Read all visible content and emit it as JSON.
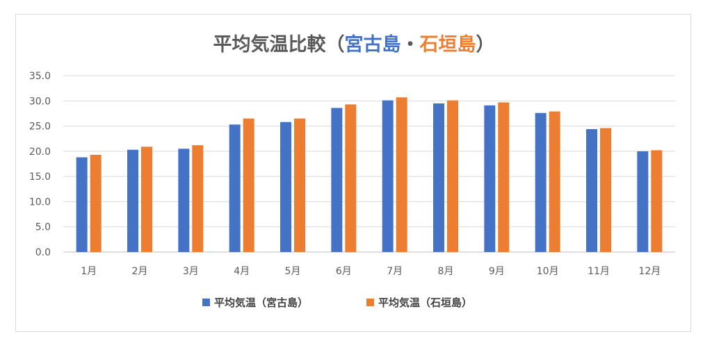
{
  "chart_data": {
    "type": "bar",
    "title": {
      "main": "平均気温比較",
      "open": "（",
      "place1": "宮古島",
      "sep": "・",
      "place2": "石垣島",
      "close": "）"
    },
    "categories": [
      "1月",
      "2月",
      "3月",
      "4月",
      "5月",
      "6月",
      "7月",
      "8月",
      "9月",
      "10月",
      "11月",
      "12月"
    ],
    "y_ticks": [
      "0.0",
      "5.0",
      "10.0",
      "15.0",
      "20.0",
      "25.0",
      "30.0",
      "35.0"
    ],
    "ylim": [
      0,
      35
    ],
    "grid": true,
    "legend_position": "bottom",
    "series": [
      {
        "name": "平均気温（宮古島）",
        "color": "#4472c4",
        "values": [
          18.8,
          20.3,
          20.5,
          25.3,
          25.8,
          28.6,
          30.1,
          29.5,
          29.1,
          27.6,
          24.4,
          20.0
        ]
      },
      {
        "name": "平均気温（石垣島）",
        "color": "#ed7d31",
        "values": [
          19.3,
          20.9,
          21.2,
          26.5,
          26.5,
          29.3,
          30.7,
          30.1,
          29.7,
          27.9,
          24.6,
          20.2
        ]
      }
    ],
    "colors": {
      "title_main": "#595959",
      "title_place1": "#4472c4",
      "title_place2": "#ed7d31",
      "grid": "#d9d9d9",
      "axis": "#bfbfbf"
    }
  }
}
